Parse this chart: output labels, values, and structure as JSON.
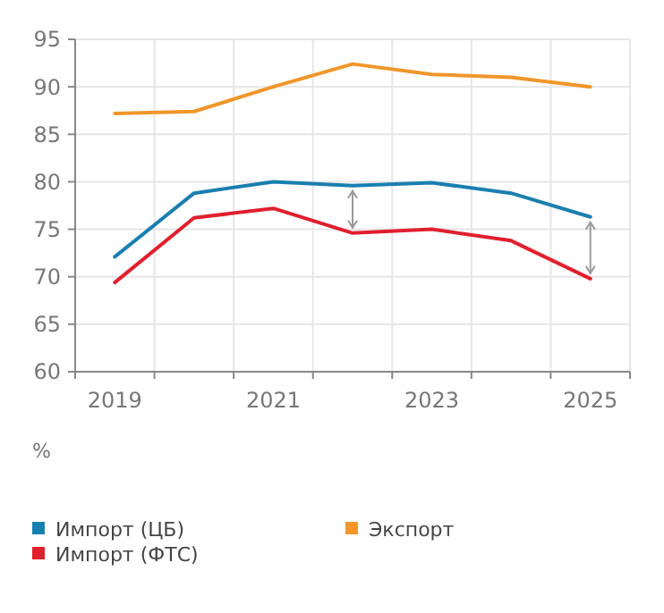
{
  "chart_data": {
    "type": "line",
    "ylabel": "%",
    "categories": [
      "2019",
      null,
      "2021",
      null,
      "2023",
      null,
      "2025"
    ],
    "ylim": [
      60,
      95
    ],
    "yticks": [
      60,
      65,
      70,
      75,
      80,
      85,
      90,
      95
    ],
    "grid": true,
    "legend": "bottom",
    "marker": "none",
    "line_style": "solid",
    "series": [
      {
        "name": "Импорт (ЦБ)",
        "color": "#1a7fb0",
        "values": [
          72.1,
          78.8,
          80.0,
          79.6,
          79.9,
          78.8,
          76.3
        ]
      },
      {
        "name": "Экспорт",
        "color": "#f0962a",
        "values": [
          87.2,
          87.4,
          90.0,
          92.4,
          91.3,
          91.0,
          90.0
        ]
      },
      {
        "name": "Импорт (ФТС)",
        "color": "#e0202e",
        "values": [
          69.4,
          76.2,
          77.2,
          74.6,
          75.0,
          73.8,
          69.8
        ]
      }
    ]
  }
}
